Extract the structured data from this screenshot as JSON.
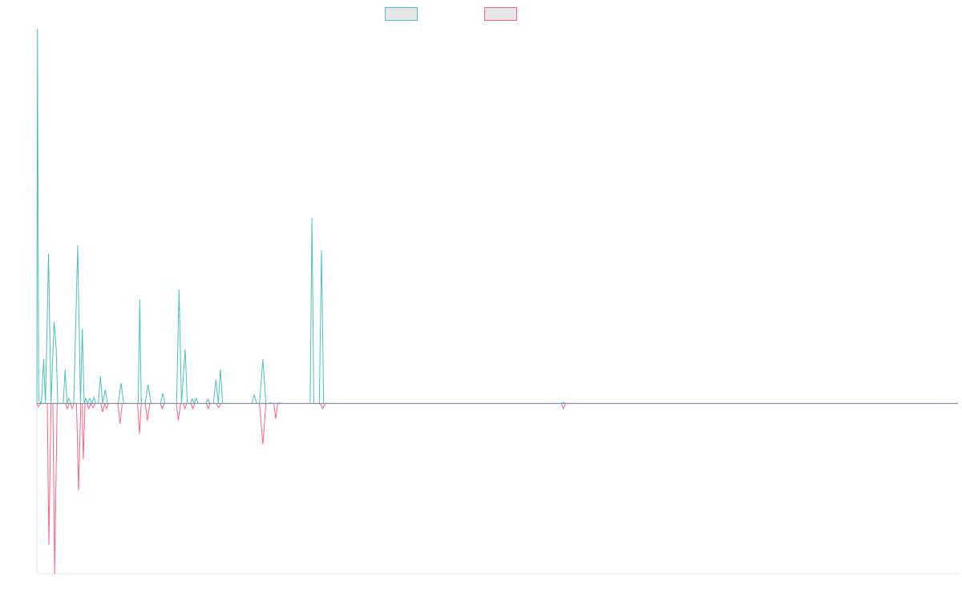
{
  "chart_data": {
    "type": "line",
    "title": "",
    "xlabel": "",
    "ylabel": "",
    "grid": false,
    "legend": "top-center",
    "xlim": [
      0,
      300
    ],
    "ylim": [
      -5000,
      11000
    ],
    "colors": {
      "series_a": "#4bc0c0",
      "series_b": "#ff6384",
      "zero_line": "#8a8f99",
      "axis": "#e5e5e5"
    },
    "series": [
      {
        "color": "#4bc0c0",
        "points": [
          [
            0,
            0
          ],
          [
            0.2,
            11000
          ],
          [
            0.6,
            100
          ],
          [
            1.5,
            0
          ],
          [
            2.2,
            1300
          ],
          [
            2.8,
            0
          ],
          [
            3.8,
            4400
          ],
          [
            4.6,
            0
          ],
          [
            5.6,
            2400
          ],
          [
            6.3,
            1600
          ],
          [
            6.8,
            0
          ],
          [
            8.6,
            0
          ],
          [
            9.2,
            1000
          ],
          [
            9.8,
            0
          ],
          [
            10.4,
            150
          ],
          [
            11,
            0
          ],
          [
            12,
            0
          ],
          [
            13.3,
            4650
          ],
          [
            14.2,
            0
          ],
          [
            14.8,
            2200
          ],
          [
            15.4,
            0
          ],
          [
            15.9,
            150
          ],
          [
            16.5,
            0
          ],
          [
            17.2,
            150
          ],
          [
            17.9,
            0
          ],
          [
            18.6,
            180
          ],
          [
            19.2,
            0
          ],
          [
            20,
            0
          ],
          [
            20.7,
            800
          ],
          [
            21.4,
            0
          ],
          [
            22.3,
            400
          ],
          [
            23,
            0
          ],
          [
            24,
            0
          ],
          [
            26.5,
            0
          ],
          [
            27.4,
            600
          ],
          [
            28.3,
            0
          ],
          [
            33,
            0
          ],
          [
            33.5,
            3050
          ],
          [
            34,
            0
          ],
          [
            35.2,
            0
          ],
          [
            36.2,
            550
          ],
          [
            37.2,
            0
          ],
          [
            40.3,
            0
          ],
          [
            41,
            300
          ],
          [
            41.7,
            0
          ],
          [
            45.5,
            0
          ],
          [
            46.3,
            3350
          ],
          [
            47.1,
            0
          ],
          [
            48.3,
            1600
          ],
          [
            49,
            0
          ],
          [
            50,
            0
          ],
          [
            50.6,
            130
          ],
          [
            51.2,
            0
          ],
          [
            51.9,
            150
          ],
          [
            52.5,
            0
          ],
          [
            55,
            0
          ],
          [
            55.7,
            120
          ],
          [
            56.4,
            0
          ],
          [
            57.5,
            0
          ],
          [
            58.3,
            700
          ],
          [
            59.1,
            0
          ],
          [
            59.8,
            1000
          ],
          [
            60.5,
            0
          ],
          [
            70,
            0
          ],
          [
            70.8,
            250
          ],
          [
            71.6,
            0
          ],
          [
            72.5,
            0
          ],
          [
            73.6,
            1300
          ],
          [
            74.6,
            0
          ],
          [
            75.5,
            0
          ],
          [
            76.2,
            20
          ],
          [
            77,
            0
          ],
          [
            78.4,
            0
          ],
          [
            79,
            20
          ],
          [
            79.6,
            0
          ],
          [
            89,
            0
          ],
          [
            89.6,
            5450
          ],
          [
            90.2,
            0
          ],
          [
            92,
            0
          ],
          [
            92.7,
            4500
          ],
          [
            93.4,
            0
          ],
          [
            170.8,
            0
          ],
          [
            171.5,
            30
          ],
          [
            172.2,
            0
          ],
          [
            300,
            0
          ]
        ]
      },
      {
        "color": "#ff6384",
        "points": [
          [
            0,
            0
          ],
          [
            0.5,
            -100
          ],
          [
            1.2,
            0
          ],
          [
            3.4,
            0
          ],
          [
            3.9,
            -4150
          ],
          [
            4.6,
            0
          ],
          [
            5.2,
            0
          ],
          [
            5.8,
            -5000
          ],
          [
            6.6,
            0
          ],
          [
            9.3,
            0
          ],
          [
            9.9,
            -150
          ],
          [
            10.5,
            0
          ],
          [
            10.9,
            0
          ],
          [
            11.5,
            -150
          ],
          [
            12.1,
            0
          ],
          [
            12.9,
            0
          ],
          [
            13.6,
            -2550
          ],
          [
            14.3,
            0
          ],
          [
            14.8,
            0
          ],
          [
            15.1,
            -1650
          ],
          [
            15.7,
            0
          ],
          [
            16.3,
            0
          ],
          [
            16.9,
            -150
          ],
          [
            17.5,
            0
          ],
          [
            18.3,
            -120
          ],
          [
            19,
            0
          ],
          [
            20.8,
            0
          ],
          [
            21.4,
            -250
          ],
          [
            22.1,
            0
          ],
          [
            22.7,
            -150
          ],
          [
            23.3,
            0
          ],
          [
            26.4,
            0
          ],
          [
            27.1,
            -600
          ],
          [
            27.8,
            0
          ],
          [
            32.8,
            0
          ],
          [
            33.4,
            -900
          ],
          [
            34,
            0
          ],
          [
            35.3,
            0
          ],
          [
            36,
            -500
          ],
          [
            36.8,
            0
          ],
          [
            40.2,
            0
          ],
          [
            40.8,
            -150
          ],
          [
            41.5,
            0
          ],
          [
            45.4,
            0
          ],
          [
            46.1,
            -500
          ],
          [
            46.8,
            0
          ],
          [
            47.6,
            0
          ],
          [
            48.2,
            -150
          ],
          [
            48.8,
            0
          ],
          [
            50.2,
            0
          ],
          [
            50.8,
            -150
          ],
          [
            51.4,
            0
          ],
          [
            55.2,
            0
          ],
          [
            55.8,
            -150
          ],
          [
            56.4,
            0
          ],
          [
            58.4,
            0
          ],
          [
            59.2,
            -120
          ],
          [
            60,
            0
          ],
          [
            72.5,
            0
          ],
          [
            73.6,
            -1200
          ],
          [
            74.6,
            0
          ],
          [
            77.2,
            0
          ],
          [
            77.8,
            -450
          ],
          [
            78.4,
            0
          ],
          [
            92.3,
            0
          ],
          [
            93.1,
            -150
          ],
          [
            93.9,
            0
          ],
          [
            170.8,
            0
          ],
          [
            171.5,
            -150
          ],
          [
            172.2,
            0
          ],
          [
            300,
            0
          ]
        ]
      }
    ]
  }
}
